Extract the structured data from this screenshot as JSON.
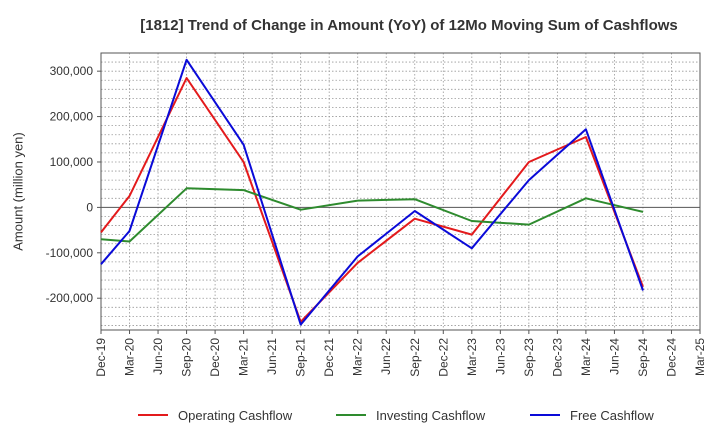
{
  "chart_data": {
    "type": "line",
    "title": "[1812]  Trend of Change in Amount (YoY) of 12Mo Moving Sum of Cashflows",
    "xlabel": "",
    "ylabel": "Amount (million yen)",
    "categories": [
      "Dec-19",
      "Mar-20",
      "Jun-20",
      "Sep-20",
      "Dec-20",
      "Mar-21",
      "Jun-21",
      "Sep-21",
      "Dec-21",
      "Mar-22",
      "Jun-22",
      "Sep-22",
      "Dec-22",
      "Mar-23",
      "Jun-23",
      "Sep-23",
      "Dec-23",
      "Mar-24",
      "Jun-24",
      "Sep-24",
      "Dec-24",
      "Mar-25"
    ],
    "ylim": [
      -270000,
      340000
    ],
    "yticks": [
      300000,
      200000,
      100000,
      0,
      -100000,
      -200000
    ],
    "ytick_labels": [
      "300,000",
      "200,000",
      "100,000",
      "0",
      "-100,000",
      "-200,000"
    ],
    "grid": true,
    "legend_position": "bottom",
    "series": [
      {
        "name": "Operating Cashflow",
        "color": "#e31a1c",
        "values": [
          -55000,
          25000,
          null,
          285000,
          null,
          100000,
          null,
          -252000,
          null,
          -122000,
          null,
          -25000,
          null,
          -60000,
          null,
          100000,
          null,
          155000,
          null,
          -175000,
          null,
          null
        ]
      },
      {
        "name": "Investing Cashflow",
        "color": "#2e8b2e",
        "values": [
          -70000,
          -75000,
          null,
          42000,
          null,
          38000,
          null,
          -5000,
          null,
          15000,
          null,
          18000,
          null,
          -30000,
          null,
          -38000,
          null,
          20000,
          null,
          -10000,
          null,
          null
        ]
      },
      {
        "name": "Free Cashflow",
        "color": "#0a0ad8",
        "values": [
          -125000,
          -52000,
          null,
          325000,
          null,
          138000,
          null,
          -258000,
          null,
          -108000,
          null,
          -8000,
          null,
          -90000,
          null,
          60000,
          null,
          172000,
          null,
          -183000,
          null,
          null
        ]
      }
    ]
  }
}
